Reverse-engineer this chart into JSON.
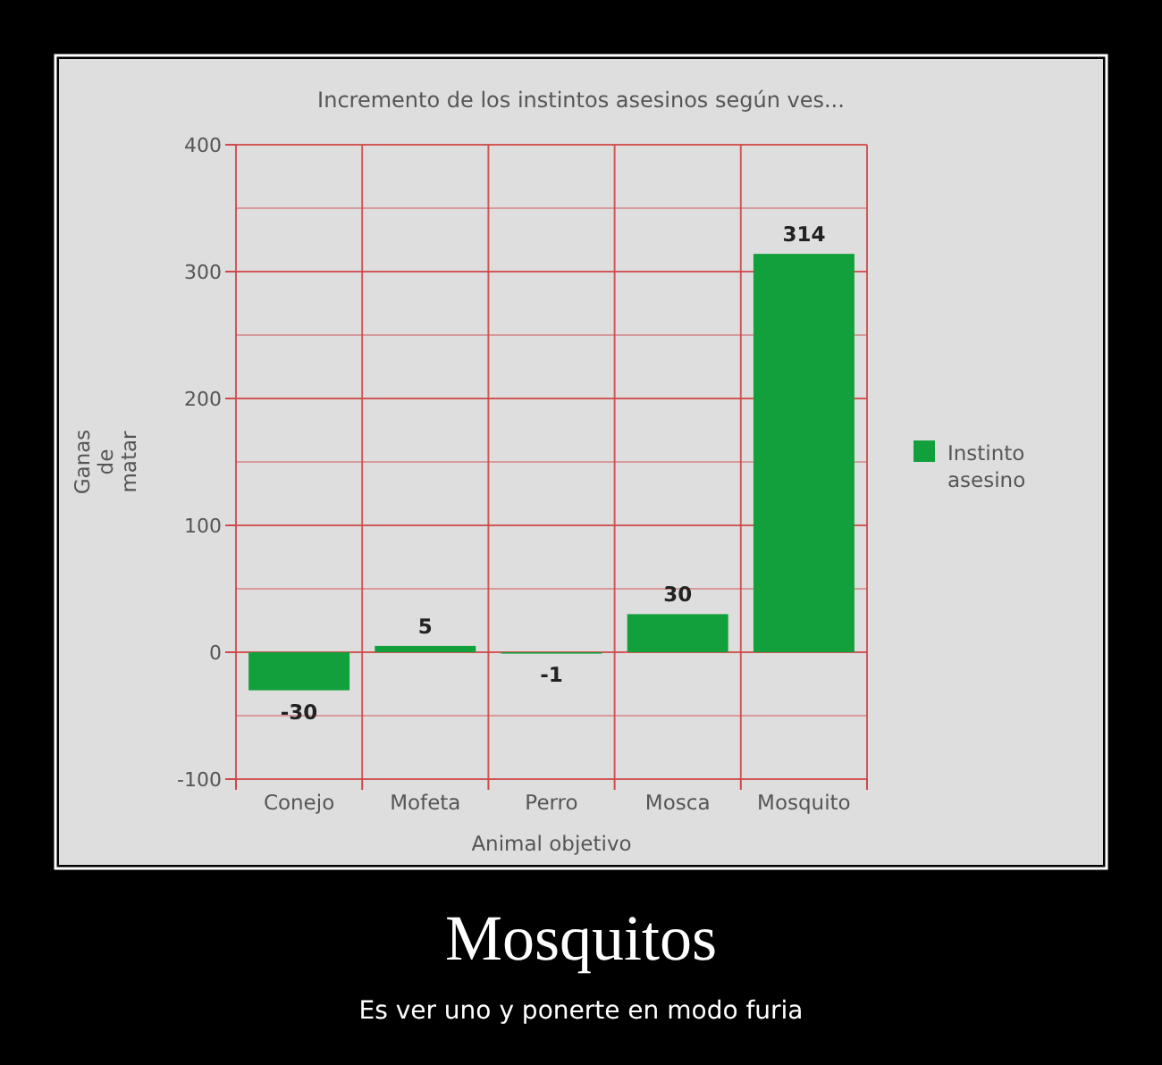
{
  "chart_data": {
    "type": "bar",
    "title": "Incremento de los instintos asesinos según ves...",
    "xlabel": "Animal objetivo",
    "ylabel": "Ganas de matar",
    "categories": [
      "Conejo",
      "Mofeta",
      "Perro",
      "Mosca",
      "Mosquito"
    ],
    "series": [
      {
        "name": "Instinto asesino",
        "color": "#12a03c",
        "values": [
          -30,
          5,
          -1,
          30,
          314
        ]
      }
    ],
    "ylim": [
      -100,
      400
    ],
    "yticks": [
      -100,
      {
        "value": -50,
        "label": null
      },
      0,
      {
        "value": 50,
        "label": null
      },
      100,
      {
        "value": 150,
        "label": null
      },
      200,
      {
        "value": 250,
        "label": null
      },
      300,
      {
        "value": 350,
        "label": null
      },
      400
    ],
    "grid": true,
    "legend": "right",
    "data_labels": true,
    "annotations": [
      "Mosquitos",
      "Es ver uno y ponerte en modo furia"
    ]
  }
}
